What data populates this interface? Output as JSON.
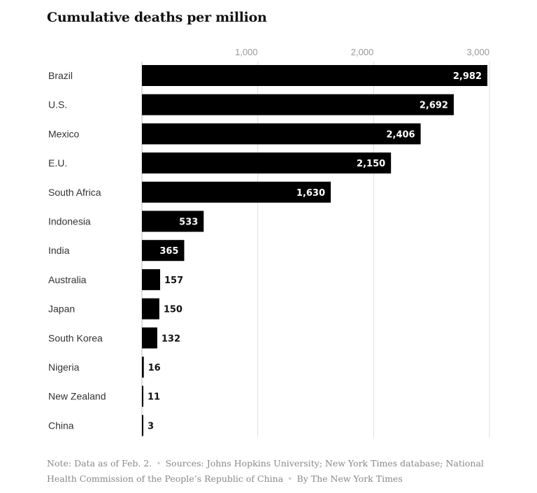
{
  "chart_data": {
    "type": "bar",
    "orientation": "horizontal",
    "title": "Cumulative deaths per million",
    "categories": [
      "Brazil",
      "U.S.",
      "Mexico",
      "E.U.",
      "South Africa",
      "Indonesia",
      "India",
      "Australia",
      "Japan",
      "South Korea",
      "Nigeria",
      "New Zealand",
      "China"
    ],
    "values": [
      2982,
      2692,
      2406,
      2150,
      1630,
      533,
      365,
      157,
      150,
      132,
      16,
      11,
      3
    ],
    "value_labels": [
      "2,982",
      "2,692",
      "2,406",
      "2,150",
      "1,630",
      "533",
      "365",
      "157",
      "150",
      "132",
      "16",
      "11",
      "3"
    ],
    "xlim": [
      0,
      3000
    ],
    "xticks": [
      1000,
      2000,
      3000
    ],
    "xtick_labels": [
      "1,000",
      "2,000",
      "3,000"
    ],
    "xlabel": "",
    "ylabel": "",
    "grid": true,
    "bar_color": "#000000"
  },
  "footer": {
    "note": "Note: Data as of Feb. 2.",
    "sources": "Sources: Johns Hopkins University; New York Times database; National Health Commission of the People’s Republic of China",
    "credit": "By The New York Times"
  }
}
